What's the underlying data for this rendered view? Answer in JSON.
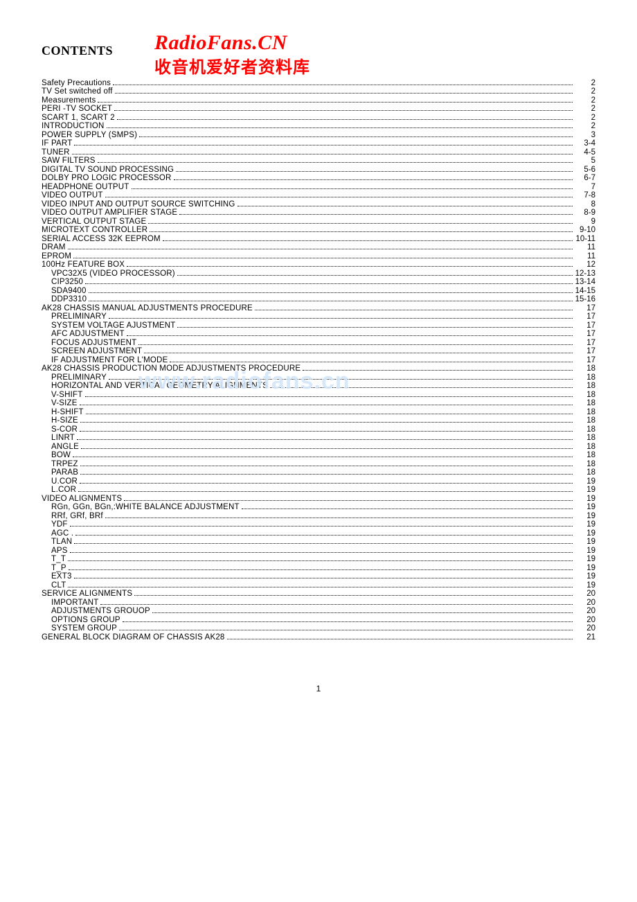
{
  "header": {
    "title": "CONTENTS",
    "watermark_main": "RadioFans.CN",
    "watermark_sub": "收音机爱好者资料库"
  },
  "mid_watermark": "www.radiofans.cn",
  "footer_page": "1",
  "colors": {
    "watermark_red": "#ff0000",
    "mid_watermark": "rgba(210,230,250,0.9)",
    "text": "#000000",
    "background": "#ffffff"
  },
  "toc": [
    {
      "label": "Safety Precautions",
      "page": "2",
      "indent": 0
    },
    {
      "label": "TV Set switched off",
      "page": "2",
      "indent": 0
    },
    {
      "label": "Measurements",
      "page": "2",
      "indent": 0
    },
    {
      "label": "PERI -TV SOCKET",
      "page": "2",
      "indent": 0
    },
    {
      "label": "SCART 1, SCART 2",
      "page": "2",
      "indent": 0
    },
    {
      "label": "INTRODUCTION",
      "page": "2",
      "indent": 0
    },
    {
      "label": "POWER SUPPLY (SMPS)",
      "page": "3",
      "indent": 0
    },
    {
      "label": "IF PART",
      "page": "3-4",
      "indent": 0
    },
    {
      "label": "TUNER",
      "page": "4-5",
      "indent": 0
    },
    {
      "label": "SAW FILTERS",
      "page": "5",
      "indent": 0
    },
    {
      "label": "DIGITAL TV SOUND PROCESSING",
      "page": "5-6",
      "indent": 0
    },
    {
      "label": "DOLBY PRO LOGIC PROCESSOR",
      "page": "6-7",
      "indent": 0
    },
    {
      "label": "HEADPHONE OUTPUT",
      "page": "7",
      "indent": 0
    },
    {
      "label": "VIDEO OUTPUT",
      "page": "7-8",
      "indent": 0
    },
    {
      "label": "VIDEO INPUT AND OUTPUT SOURCE SWITCHING",
      "page": "8",
      "indent": 0
    },
    {
      "label": "VIDEO OUTPUT AMPLIFIER STAGE",
      "page": "8-9",
      "indent": 0
    },
    {
      "label": "VERTICAL OUTPUT STAGE",
      "page": "9",
      "indent": 0
    },
    {
      "label": "MICROTEXT CONTROLLER",
      "page": "9-10",
      "indent": 0
    },
    {
      "label": "SERIAL ACCESS 32K EEPROM",
      "page": "10-11",
      "indent": 0
    },
    {
      "label": "DRAM",
      "page": "11",
      "indent": 0
    },
    {
      "label": "EPROM",
      "page": "11",
      "indent": 0
    },
    {
      "label": "100Hz FEATURE BOX",
      "page": "12",
      "indent": 0
    },
    {
      "label": "VPC32X5 (VIDEO PROCESSOR)",
      "page": "12-13",
      "indent": 1
    },
    {
      "label": "CIP3250",
      "page": "13-14",
      "indent": 1
    },
    {
      "label": "SDA9400",
      "page": "14-15",
      "indent": 1
    },
    {
      "label": "DDP3310",
      "page": "15-16",
      "indent": 1
    },
    {
      "label": "AK28 CHASSIS MANUAL ADJUSTMENTS PROCEDURE",
      "page": "17",
      "indent": 0
    },
    {
      "label": "PRELIMINARY",
      "page": "17",
      "indent": 1
    },
    {
      "label": "SYSTEM VOLTAGE AJUSTMENT",
      "page": "17",
      "indent": 1
    },
    {
      "label": "AFC ADJUSTMENT",
      "page": "17",
      "indent": 1
    },
    {
      "label": "FOCUS ADJUSTMENT",
      "page": "17",
      "indent": 1
    },
    {
      "label": "SCREEN ADJUSTMENT",
      "page": "17",
      "indent": 1
    },
    {
      "label": "IF ADJUSTMENT FOR L'MODE",
      "page": "17",
      "indent": 1
    },
    {
      "label": "AK28 CHASSIS PRODUCTION MODE ADJUSTMENTS PROCEDURE",
      "page": "18",
      "indent": 0
    },
    {
      "label": "PRELIMINARY",
      "page": "18",
      "indent": 1,
      "watermark_before": true
    },
    {
      "label": "HORIZONTAL AND VERTICAL GEOMETRY ALIGNMENTS",
      "page": "18",
      "indent": 1
    },
    {
      "label": "V-SHIFT",
      "page": "18",
      "indent": 1
    },
    {
      "label": "V-SIZE",
      "page": "18",
      "indent": 1
    },
    {
      "label": "H-SHIFT",
      "page": "18",
      "indent": 1
    },
    {
      "label": "H-SIZE",
      "page": "18",
      "indent": 1
    },
    {
      "label": "S-COR",
      "page": "18",
      "indent": 1
    },
    {
      "label": "LINRT",
      "page": "18",
      "indent": 1
    },
    {
      "label": "ANGLE",
      "page": "18",
      "indent": 1
    },
    {
      "label": "BOW",
      "page": "18",
      "indent": 1
    },
    {
      "label": "TRPEZ",
      "page": "18",
      "indent": 1
    },
    {
      "label": "PARAB",
      "page": "18",
      "indent": 1
    },
    {
      "label": "U.COR",
      "page": "19",
      "indent": 1
    },
    {
      "label": "L.COR",
      "page": "19",
      "indent": 1
    },
    {
      "label": "VIDEO ALIGNMENTS",
      "page": "19",
      "indent": 0
    },
    {
      "label": "RGn, GGn, BGn,:WHITE BALANCE ADJUSTMENT",
      "page": "19",
      "indent": 1
    },
    {
      "label": "RRf, GRf, BRf",
      "page": "19",
      "indent": 1
    },
    {
      "label": "YDF",
      "page": "19",
      "indent": 1
    },
    {
      "label": "AGC .",
      "page": "19",
      "indent": 1
    },
    {
      "label": "TLAN",
      "page": "19",
      "indent": 1
    },
    {
      "label": "APS",
      "page": "19",
      "indent": 1
    },
    {
      "label": "T_T",
      "page": "19",
      "indent": 1
    },
    {
      "label": "T_P",
      "page": "19",
      "indent": 1
    },
    {
      "label": "EXT3",
      "page": "19",
      "indent": 1
    },
    {
      "label": "CLT",
      "page": "19",
      "indent": 1
    },
    {
      "label": "SERVICE ALIGNMENTS",
      "page": "20",
      "indent": 0
    },
    {
      "label": "IMPORTANT",
      "page": "20",
      "indent": 1
    },
    {
      "label": "ADJUSTMENTS GROUOP",
      "page": "20",
      "indent": 1
    },
    {
      "label": "OPTIONS GROUP",
      "page": "20",
      "indent": 1
    },
    {
      "label": "SYSTEM GROUP",
      "page": "20",
      "indent": 1
    },
    {
      "label": "GENERAL BLOCK DIAGRAM OF CHASSIS AK28",
      "page": "21",
      "indent": 0
    }
  ]
}
